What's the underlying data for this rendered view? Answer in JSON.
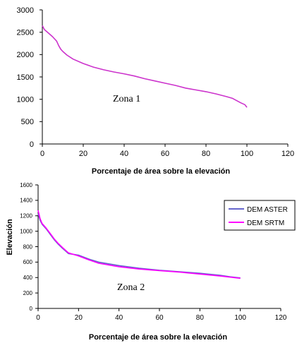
{
  "chart_data": [
    {
      "type": "line",
      "title": "",
      "annotation": "Zona 1",
      "xlabel": "Porcentaje de área sobre la elevación",
      "ylabel": "",
      "xlim": [
        0,
        120
      ],
      "ylim": [
        0,
        3000
      ],
      "xticks": [
        "0",
        "20",
        "40",
        "60",
        "80",
        "100",
        "120"
      ],
      "yticks": [
        "0",
        "500",
        "1000",
        "1500",
        "2000",
        "2500",
        "3000"
      ],
      "grid": false,
      "legend": "none",
      "series": [
        {
          "color": "#cc33cc",
          "x": [
            0,
            1,
            3,
            5,
            7,
            8,
            9,
            10,
            12,
            15,
            20,
            25,
            30,
            35,
            40,
            45,
            50,
            55,
            60,
            65,
            70,
            75,
            80,
            85,
            90,
            93,
            95,
            97,
            99,
            100
          ],
          "y": [
            2650,
            2560,
            2480,
            2400,
            2300,
            2200,
            2120,
            2070,
            1990,
            1900,
            1800,
            1720,
            1660,
            1610,
            1570,
            1520,
            1460,
            1410,
            1360,
            1310,
            1250,
            1210,
            1170,
            1120,
            1060,
            1020,
            970,
            920,
            880,
            820
          ]
        }
      ]
    },
    {
      "type": "line",
      "title": "",
      "annotation": "Zona 2",
      "xlabel": "Porcentaje de área sobre la elevación",
      "ylabel": "Elevación",
      "xlim": [
        0,
        120
      ],
      "ylim": [
        0,
        1600
      ],
      "xticks": [
        "0",
        "20",
        "40",
        "60",
        "80",
        "100",
        "120"
      ],
      "yticks": [
        "0",
        "200",
        "400",
        "600",
        "800",
        "1000",
        "1200",
        "1400",
        "1600"
      ],
      "grid": false,
      "legend": "right",
      "series": [
        {
          "name": "DEM ASTER",
          "color": "#6666cc",
          "x": [
            0,
            1,
            2,
            4,
            6,
            8,
            10,
            12,
            15,
            20,
            25,
            30,
            40,
            50,
            60,
            70,
            80,
            90,
            95,
            100
          ],
          "y": [
            1230,
            1140,
            1090,
            1030,
            960,
            890,
            830,
            780,
            710,
            690,
            640,
            600,
            555,
            520,
            495,
            475,
            455,
            430,
            410,
            395
          ]
        },
        {
          "name": "DEM SRTM",
          "color": "#ff00ff",
          "x": [
            0,
            1,
            2,
            4,
            6,
            8,
            10,
            12,
            15,
            20,
            25,
            30,
            40,
            50,
            60,
            70,
            80,
            90,
            95,
            100
          ],
          "y": [
            1270,
            1160,
            1100,
            1040,
            970,
            900,
            840,
            790,
            720,
            680,
            630,
            585,
            540,
            510,
            490,
            470,
            445,
            420,
            405,
            390
          ]
        }
      ]
    }
  ]
}
